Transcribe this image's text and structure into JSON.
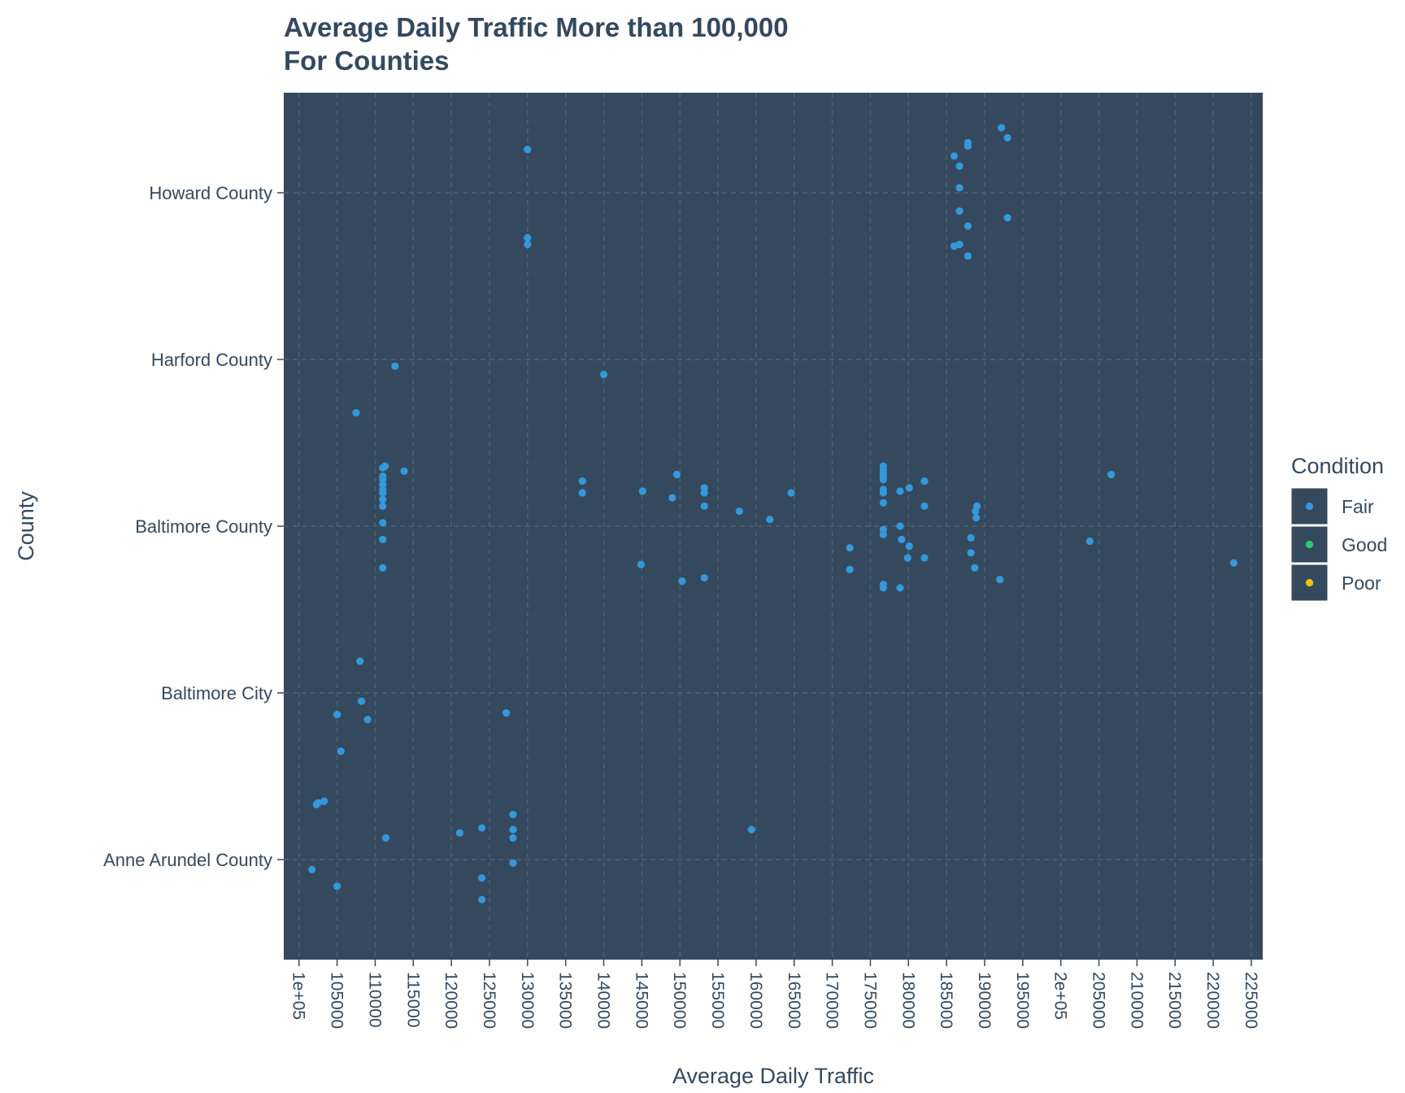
{
  "chart_data": {
    "type": "scatter",
    "title_lines": [
      "Average Daily Traffic More than 100,000",
      "For Counties"
    ],
    "xlabel": "Average Daily Traffic",
    "ylabel": "County",
    "xlim": [
      98000,
      226500
    ],
    "x_ticks": [
      100000,
      105000,
      110000,
      115000,
      120000,
      125000,
      130000,
      135000,
      140000,
      145000,
      150000,
      155000,
      160000,
      165000,
      170000,
      175000,
      180000,
      185000,
      190000,
      195000,
      200000,
      205000,
      210000,
      215000,
      220000,
      225000
    ],
    "x_tick_labels": [
      "1e+05",
      "105000",
      "110000",
      "115000",
      "120000",
      "125000",
      "130000",
      "135000",
      "140000",
      "145000",
      "150000",
      "155000",
      "160000",
      "165000",
      "170000",
      "175000",
      "180000",
      "185000",
      "190000",
      "195000",
      "2e+05",
      "205000",
      "210000",
      "215000",
      "220000",
      "225000"
    ],
    "categories": [
      "Anne Arundel County",
      "Baltimore City",
      "Baltimore County",
      "Harford County",
      "Howard County"
    ],
    "grid": true,
    "legend": {
      "title": "Condition",
      "position": "right",
      "entries": [
        {
          "label": "Fair",
          "color": "#3498db"
        },
        {
          "label": "Good",
          "color": "#2ecc71"
        },
        {
          "label": "Poor",
          "color": "#f1c40f"
        }
      ]
    },
    "colors": {
      "panel": "#34495e",
      "grid": "#4e6278",
      "text": "#34495e",
      "point": "#3498db"
    },
    "series": [
      {
        "name": "Fair",
        "points": [
          {
            "x": 130000,
            "y": "Howard County",
            "jitter": 0.26
          },
          {
            "x": 130000,
            "y": "Howard County",
            "jitter": -0.27
          },
          {
            "x": 130000,
            "y": "Howard County",
            "jitter": -0.31
          },
          {
            "x": 186000,
            "y": "Howard County",
            "jitter": 0.22
          },
          {
            "x": 186700,
            "y": "Howard County",
            "jitter": 0.16
          },
          {
            "x": 186700,
            "y": "Howard County",
            "jitter": 0.03
          },
          {
            "x": 186700,
            "y": "Howard County",
            "jitter": -0.11
          },
          {
            "x": 187800,
            "y": "Howard County",
            "jitter": 0.28
          },
          {
            "x": 187800,
            "y": "Howard County",
            "jitter": 0.3
          },
          {
            "x": 187800,
            "y": "Howard County",
            "jitter": -0.2
          },
          {
            "x": 186000,
            "y": "Howard County",
            "jitter": -0.32
          },
          {
            "x": 186700,
            "y": "Howard County",
            "jitter": -0.31
          },
          {
            "x": 187800,
            "y": "Howard County",
            "jitter": -0.38
          },
          {
            "x": 192200,
            "y": "Howard County",
            "jitter": 0.39
          },
          {
            "x": 193000,
            "y": "Howard County",
            "jitter": 0.33
          },
          {
            "x": 193000,
            "y": "Howard County",
            "jitter": -0.15
          },
          {
            "x": 112600,
            "y": "Harford County",
            "jitter": -0.04
          },
          {
            "x": 140000,
            "y": "Harford County",
            "jitter": -0.09
          },
          {
            "x": 107500,
            "y": "Baltimore County",
            "jitter": 0.68
          },
          {
            "x": 111300,
            "y": "Baltimore County",
            "jitter": 0.36
          },
          {
            "x": 111000,
            "y": "Baltimore County",
            "jitter": 0.35
          },
          {
            "x": 111000,
            "y": "Baltimore County",
            "jitter": 0.3
          },
          {
            "x": 111000,
            "y": "Baltimore County",
            "jitter": 0.28
          },
          {
            "x": 111000,
            "y": "Baltimore County",
            "jitter": 0.25
          },
          {
            "x": 111000,
            "y": "Baltimore County",
            "jitter": 0.22
          },
          {
            "x": 111000,
            "y": "Baltimore County",
            "jitter": 0.2
          },
          {
            "x": 111000,
            "y": "Baltimore County",
            "jitter": 0.16
          },
          {
            "x": 111000,
            "y": "Baltimore County",
            "jitter": 0.12
          },
          {
            "x": 111000,
            "y": "Baltimore County",
            "jitter": 0.02
          },
          {
            "x": 111000,
            "y": "Baltimore County",
            "jitter": -0.08
          },
          {
            "x": 111000,
            "y": "Baltimore County",
            "jitter": -0.25
          },
          {
            "x": 113800,
            "y": "Baltimore County",
            "jitter": 0.33
          },
          {
            "x": 137200,
            "y": "Baltimore County",
            "jitter": 0.27
          },
          {
            "x": 137200,
            "y": "Baltimore County",
            "jitter": 0.2
          },
          {
            "x": 145100,
            "y": "Baltimore County",
            "jitter": 0.21
          },
          {
            "x": 144900,
            "y": "Baltimore County",
            "jitter": -0.23
          },
          {
            "x": 149000,
            "y": "Baltimore County",
            "jitter": 0.17
          },
          {
            "x": 149600,
            "y": "Baltimore County",
            "jitter": 0.31
          },
          {
            "x": 150300,
            "y": "Baltimore County",
            "jitter": -0.33
          },
          {
            "x": 153200,
            "y": "Baltimore County",
            "jitter": 0.23
          },
          {
            "x": 153200,
            "y": "Baltimore County",
            "jitter": 0.2
          },
          {
            "x": 153200,
            "y": "Baltimore County",
            "jitter": 0.12
          },
          {
            "x": 153200,
            "y": "Baltimore County",
            "jitter": -0.31
          },
          {
            "x": 157800,
            "y": "Baltimore County",
            "jitter": 0.09
          },
          {
            "x": 161800,
            "y": "Baltimore County",
            "jitter": 0.04
          },
          {
            "x": 164600,
            "y": "Baltimore County",
            "jitter": 0.2
          },
          {
            "x": 172300,
            "y": "Baltimore County",
            "jitter": -0.13
          },
          {
            "x": 172300,
            "y": "Baltimore County",
            "jitter": -0.26
          },
          {
            "x": 176700,
            "y": "Baltimore County",
            "jitter": 0.36
          },
          {
            "x": 176700,
            "y": "Baltimore County",
            "jitter": 0.34
          },
          {
            "x": 176700,
            "y": "Baltimore County",
            "jitter": 0.32
          },
          {
            "x": 176700,
            "y": "Baltimore County",
            "jitter": 0.3
          },
          {
            "x": 176700,
            "y": "Baltimore County",
            "jitter": 0.28
          },
          {
            "x": 176700,
            "y": "Baltimore County",
            "jitter": 0.22
          },
          {
            "x": 176700,
            "y": "Baltimore County",
            "jitter": 0.2
          },
          {
            "x": 176700,
            "y": "Baltimore County",
            "jitter": 0.14
          },
          {
            "x": 176700,
            "y": "Baltimore County",
            "jitter": -0.02
          },
          {
            "x": 176700,
            "y": "Baltimore County",
            "jitter": -0.05
          },
          {
            "x": 176700,
            "y": "Baltimore County",
            "jitter": -0.35
          },
          {
            "x": 176700,
            "y": "Baltimore County",
            "jitter": -0.37
          },
          {
            "x": 178900,
            "y": "Baltimore County",
            "jitter": 0.21
          },
          {
            "x": 178900,
            "y": "Baltimore County",
            "jitter": 0.0
          },
          {
            "x": 179100,
            "y": "Baltimore County",
            "jitter": -0.08
          },
          {
            "x": 178900,
            "y": "Baltimore County",
            "jitter": -0.37
          },
          {
            "x": 180100,
            "y": "Baltimore County",
            "jitter": 0.23
          },
          {
            "x": 180100,
            "y": "Baltimore County",
            "jitter": -0.12
          },
          {
            "x": 179900,
            "y": "Baltimore County",
            "jitter": -0.19
          },
          {
            "x": 182100,
            "y": "Baltimore County",
            "jitter": 0.27
          },
          {
            "x": 182100,
            "y": "Baltimore County",
            "jitter": 0.12
          },
          {
            "x": 182100,
            "y": "Baltimore County",
            "jitter": -0.19
          },
          {
            "x": 188200,
            "y": "Baltimore County",
            "jitter": -0.07
          },
          {
            "x": 188200,
            "y": "Baltimore County",
            "jitter": -0.16
          },
          {
            "x": 188700,
            "y": "Baltimore County",
            "jitter": -0.25
          },
          {
            "x": 189000,
            "y": "Baltimore County",
            "jitter": 0.12
          },
          {
            "x": 188800,
            "y": "Baltimore County",
            "jitter": 0.09
          },
          {
            "x": 188900,
            "y": "Baltimore County",
            "jitter": 0.05
          },
          {
            "x": 192000,
            "y": "Baltimore County",
            "jitter": -0.32
          },
          {
            "x": 203800,
            "y": "Baltimore County",
            "jitter": -0.09
          },
          {
            "x": 206600,
            "y": "Baltimore County",
            "jitter": 0.31
          },
          {
            "x": 222700,
            "y": "Baltimore County",
            "jitter": -0.22
          },
          {
            "x": 108000,
            "y": "Baltimore City",
            "jitter": 0.19
          },
          {
            "x": 108200,
            "y": "Baltimore City",
            "jitter": -0.05
          },
          {
            "x": 105000,
            "y": "Baltimore City",
            "jitter": -0.13
          },
          {
            "x": 109000,
            "y": "Baltimore City",
            "jitter": -0.16
          },
          {
            "x": 105500,
            "y": "Baltimore City",
            "jitter": -0.35
          },
          {
            "x": 127200,
            "y": "Baltimore City",
            "jitter": -0.12
          },
          {
            "x": 102500,
            "y": "Anne Arundel County",
            "jitter": 0.34
          },
          {
            "x": 102300,
            "y": "Anne Arundel County",
            "jitter": 0.33
          },
          {
            "x": 103300,
            "y": "Anne Arundel County",
            "jitter": 0.35
          },
          {
            "x": 101700,
            "y": "Anne Arundel County",
            "jitter": -0.06
          },
          {
            "x": 105000,
            "y": "Anne Arundel County",
            "jitter": -0.16
          },
          {
            "x": 111400,
            "y": "Anne Arundel County",
            "jitter": 0.13
          },
          {
            "x": 121100,
            "y": "Anne Arundel County",
            "jitter": 0.16
          },
          {
            "x": 124000,
            "y": "Anne Arundel County",
            "jitter": 0.19
          },
          {
            "x": 124000,
            "y": "Anne Arundel County",
            "jitter": -0.11
          },
          {
            "x": 124000,
            "y": "Anne Arundel County",
            "jitter": -0.24
          },
          {
            "x": 128100,
            "y": "Anne Arundel County",
            "jitter": 0.27
          },
          {
            "x": 128100,
            "y": "Anne Arundel County",
            "jitter": 0.18
          },
          {
            "x": 128100,
            "y": "Anne Arundel County",
            "jitter": 0.13
          },
          {
            "x": 128100,
            "y": "Anne Arundel County",
            "jitter": -0.02
          },
          {
            "x": 159400,
            "y": "Anne Arundel County",
            "jitter": 0.18
          }
        ]
      }
    ]
  }
}
